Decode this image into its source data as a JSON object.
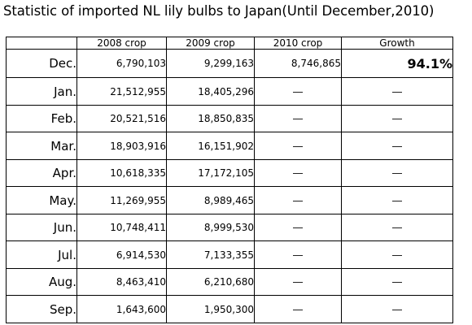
{
  "title": "Statistic of imported NL lily bulbs to Japan(Until December,2010)",
  "chart_data": {
    "type": "table",
    "title": "Statistic of imported NL lily bulbs to Japan(Until December,2010)",
    "columns": [
      "",
      "2008 crop",
      "2009 crop",
      "2010 crop",
      "Growth"
    ],
    "rows": [
      {
        "month": "Dec.",
        "c2008": "6,790,103",
        "c2009": "9,299,163",
        "c2010": "8,746,865",
        "growth": "94.1%"
      },
      {
        "month": "Jan.",
        "c2008": "21,512,955",
        "c2009": "18,405,296",
        "c2010": "―",
        "growth": "―"
      },
      {
        "month": "Feb.",
        "c2008": "20,521,516",
        "c2009": "18,850,835",
        "c2010": "―",
        "growth": "―"
      },
      {
        "month": "Mar.",
        "c2008": "18,903,916",
        "c2009": "16,151,902",
        "c2010": "―",
        "growth": "―"
      },
      {
        "month": "Apr.",
        "c2008": "10,618,335",
        "c2009": "17,172,105",
        "c2010": "―",
        "growth": "―"
      },
      {
        "month": "May.",
        "c2008": "11,269,955",
        "c2009": "8,989,465",
        "c2010": "―",
        "growth": "―"
      },
      {
        "month": "Jun.",
        "c2008": "10,748,411",
        "c2009": "8,999,530",
        "c2010": "―",
        "growth": "―"
      },
      {
        "month": "Jul.",
        "c2008": "6,914,530",
        "c2009": "7,133,355",
        "c2010": "―",
        "growth": "―"
      },
      {
        "month": "Aug.",
        "c2008": "8,463,410",
        "c2009": "6,210,680",
        "c2010": "―",
        "growth": "―"
      },
      {
        "month": "Sep.",
        "c2008": "1,643,600",
        "c2009": "1,950,300",
        "c2010": "―",
        "growth": "―"
      }
    ]
  }
}
